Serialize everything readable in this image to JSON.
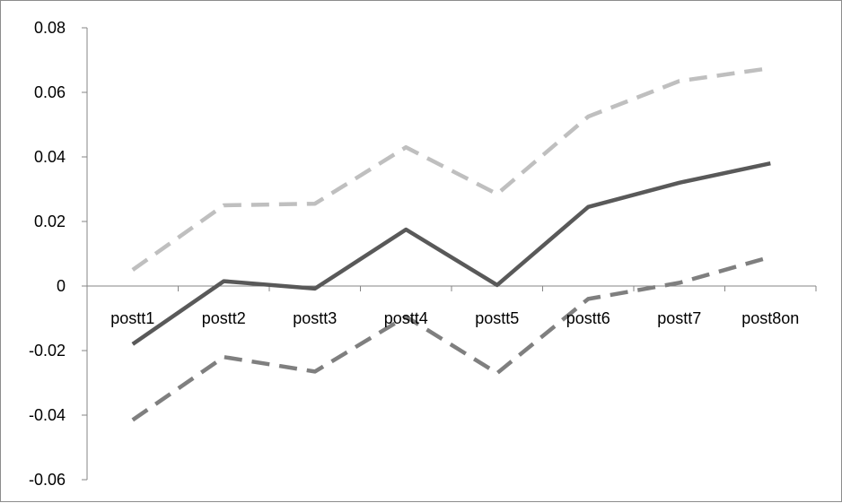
{
  "chart_data": {
    "type": "line",
    "title": "",
    "xlabel": "",
    "ylabel": "",
    "categories": [
      "postt1",
      "postt2",
      "postt3",
      "postt4",
      "postt5",
      "postt6",
      "postt7",
      "post8on"
    ],
    "ylim": [
      -0.06,
      0.08
    ],
    "yticks": [
      -0.06,
      -0.04,
      -0.02,
      0,
      0.02,
      0.04,
      0.06,
      0.08
    ],
    "ytick_labels": [
      "-0.06",
      "-0.04",
      "-0.02",
      "0",
      "0.02",
      "0.04",
      "0.06",
      "0.08"
    ],
    "grid": false,
    "legend": "none",
    "series": [
      {
        "key": "estimate",
        "style": "solid",
        "color": "#595959",
        "values": [
          -0.018,
          0.0015,
          -0.0008,
          0.0175,
          0.0003,
          0.0245,
          0.032,
          0.038
        ]
      },
      {
        "key": "upper",
        "style": "dashed",
        "color": "#bfbfbf",
        "values": [
          0.005,
          0.025,
          0.0255,
          0.043,
          0.0285,
          0.0525,
          0.0635,
          0.0675
        ]
      },
      {
        "key": "lower",
        "style": "dashed",
        "color": "#7f7f7f",
        "values": [
          -0.0415,
          -0.022,
          -0.0265,
          -0.0095,
          -0.027,
          -0.004,
          0.001,
          0.009
        ]
      }
    ]
  }
}
